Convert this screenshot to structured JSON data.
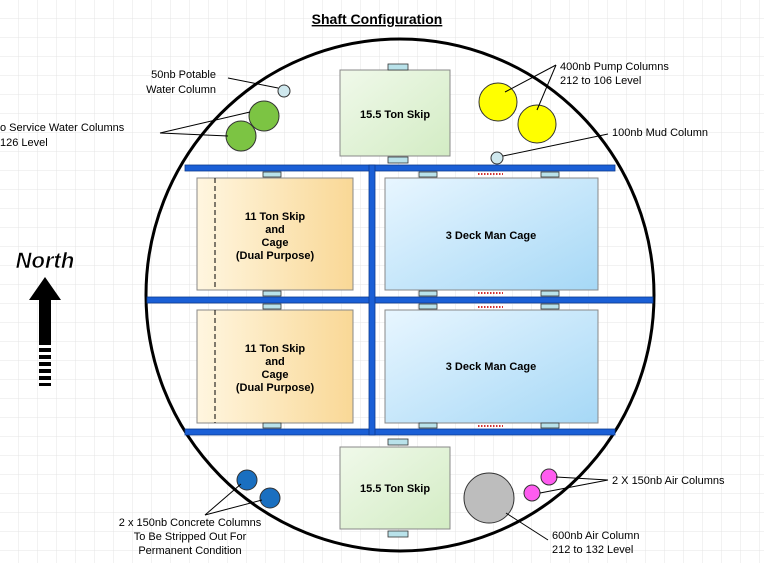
{
  "title": "Shaft Configuration",
  "north": "North",
  "compartments": {
    "top_skip": "15.5 Ton Skip",
    "bottom_skip": "15.5 Ton Skip",
    "dual_upper": [
      "11 Ton Skip",
      "and",
      "Cage",
      "(Dual Purpose)"
    ],
    "dual_lower": [
      "11 Ton Skip",
      "and",
      "Cage",
      "(Dual Purpose)"
    ],
    "cage_upper": "3 Deck Man Cage",
    "cage_lower": "3 Deck Man Cage"
  },
  "labels": {
    "potable": [
      "50nb Potable",
      "Water Column"
    ],
    "service": [
      "o Service Water Columns",
      "126 Level"
    ],
    "pump": [
      "400nb Pump Columns",
      "212 to 106 Level"
    ],
    "mud": [
      "100nb Mud Column"
    ],
    "air_small": [
      "2 X 150nb Air Columns"
    ],
    "air_large": [
      "600nb Air Column",
      "212 to 132 Level"
    ],
    "concrete": [
      "2 x 150nb Concrete Columns",
      "To Be Stripped Out For",
      "Permanent Condition"
    ]
  }
}
